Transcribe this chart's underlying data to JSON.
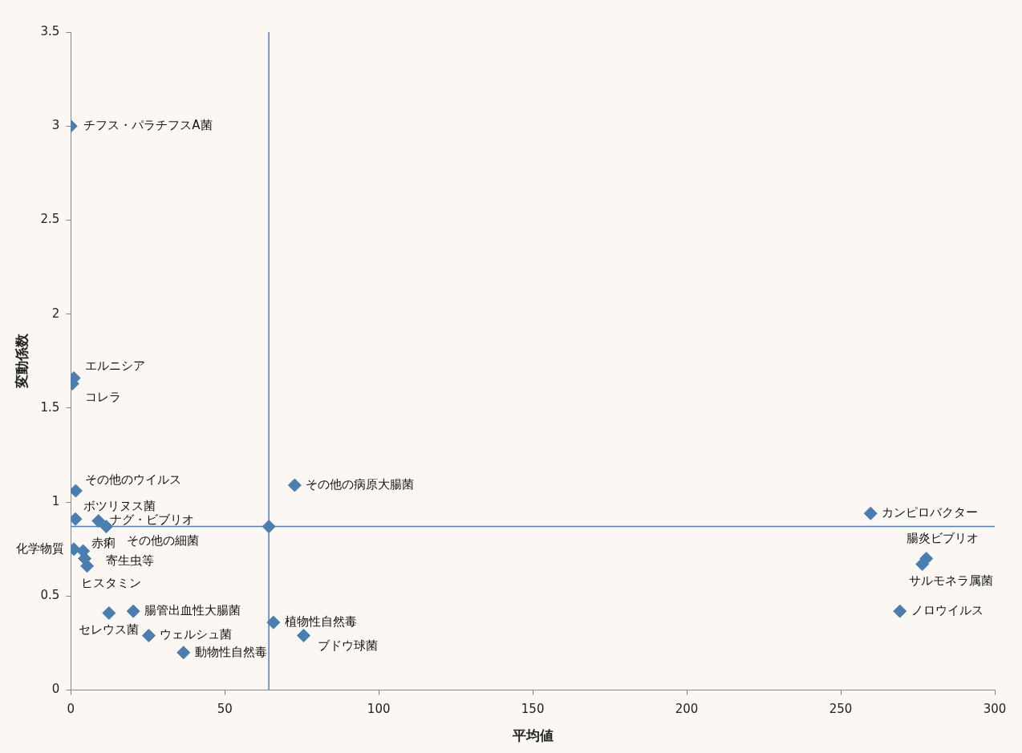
{
  "chart_data": {
    "type": "scatter",
    "xlabel": "平均値",
    "ylabel": "変動係数",
    "xlim": [
      0,
      300
    ],
    "xticks": [
      0,
      50,
      100,
      150,
      200,
      250,
      300
    ],
    "ylim": [
      0,
      3.5
    ],
    "yticks": [
      0,
      0.5,
      1,
      1.5,
      2,
      2.5,
      3,
      3.5
    ],
    "grid": false,
    "legend": false,
    "marker": "diamond",
    "ref_lines": [
      {
        "axis": "x",
        "value": 64.3,
        "color": "#4f81bd"
      },
      {
        "axis": "y",
        "value": 0.87,
        "color": "#4f81bd"
      }
    ],
    "series": [
      {
        "name": "チフス・パラチフスA菌",
        "color": "#4a7eb0",
        "x": [
          0
        ],
        "values": [
          3.0
        ]
      },
      {
        "name": "エルニシア",
        "color": "#4a7eb0",
        "x": [
          1.0
        ],
        "values": [
          1.66
        ]
      },
      {
        "name": "コレラ",
        "color": "#4a7eb0",
        "x": [
          0.5
        ],
        "values": [
          1.63
        ]
      },
      {
        "name": "その他のウイルス",
        "color": "#4a7eb0",
        "x": [
          1.6
        ],
        "values": [
          1.06
        ]
      },
      {
        "name": "ボツリヌス菌",
        "color": "#4a7eb0",
        "x": [
          1.5
        ],
        "values": [
          0.91
        ]
      },
      {
        "name": "ナグ・ビブリオ",
        "color": "#4a7eb0",
        "x": [
          9.0
        ],
        "values": [
          0.9
        ]
      },
      {
        "name": "その他の細菌",
        "color": "#4a7eb0",
        "x": [
          11.5
        ],
        "values": [
          0.87
        ]
      },
      {
        "name": "化学物質",
        "color": "#4a7eb0",
        "x": [
          1.0
        ],
        "values": [
          0.75
        ]
      },
      {
        "name": "赤痢",
        "color": "#4a7eb0",
        "x": [
          4.0
        ],
        "values": [
          0.74
        ]
      },
      {
        "name": "寄生虫等",
        "color": "#4a7eb0",
        "x": [
          4.5
        ],
        "values": [
          0.7
        ]
      },
      {
        "name": "ヒスタミン",
        "color": "#4a7eb0",
        "x": [
          5.3
        ],
        "values": [
          0.66
        ]
      },
      {
        "name": "セレウス菌",
        "color": "#4a7eb0",
        "x": [
          12.4
        ],
        "values": [
          0.41
        ]
      },
      {
        "name": "腸管出血性大腸菌",
        "color": "#4a7eb0",
        "x": [
          20.3
        ],
        "values": [
          0.42
        ]
      },
      {
        "name": "ウェルシュ菌",
        "color": "#4a7eb0",
        "x": [
          25.3
        ],
        "values": [
          0.29
        ]
      },
      {
        "name": "動物性自然毒",
        "color": "#4a7eb0",
        "x": [
          36.6
        ],
        "values": [
          0.2
        ]
      },
      {
        "color": "#4a7eb0",
        "x": [
          64.3
        ],
        "values": [
          0.87
        ]
      },
      {
        "name": "その他の病原大腸菌",
        "color": "#4a7eb0",
        "x": [
          72.7
        ],
        "values": [
          1.09
        ]
      },
      {
        "name": "植物性自然毒",
        "color": "#4a7eb0",
        "x": [
          65.8
        ],
        "values": [
          0.36
        ]
      },
      {
        "name": "ブドウ球菌",
        "color": "#4a7eb0",
        "x": [
          75.6
        ],
        "values": [
          0.29
        ]
      },
      {
        "name": "カンピロバクター",
        "color": "#4a7eb0",
        "x": [
          259.7
        ],
        "values": [
          0.94
        ]
      },
      {
        "name": "腸炎ビブリオ",
        "color": "#4a7eb0",
        "x": [
          277.8
        ],
        "values": [
          0.7
        ]
      },
      {
        "name": "サルモネラ属菌",
        "color": "#4a7eb0",
        "x": [
          276.5
        ],
        "values": [
          0.67
        ]
      },
      {
        "name": "ノロウイルス",
        "color": "#4a7eb0",
        "x": [
          269.2
        ],
        "values": [
          0.42
        ]
      }
    ]
  }
}
